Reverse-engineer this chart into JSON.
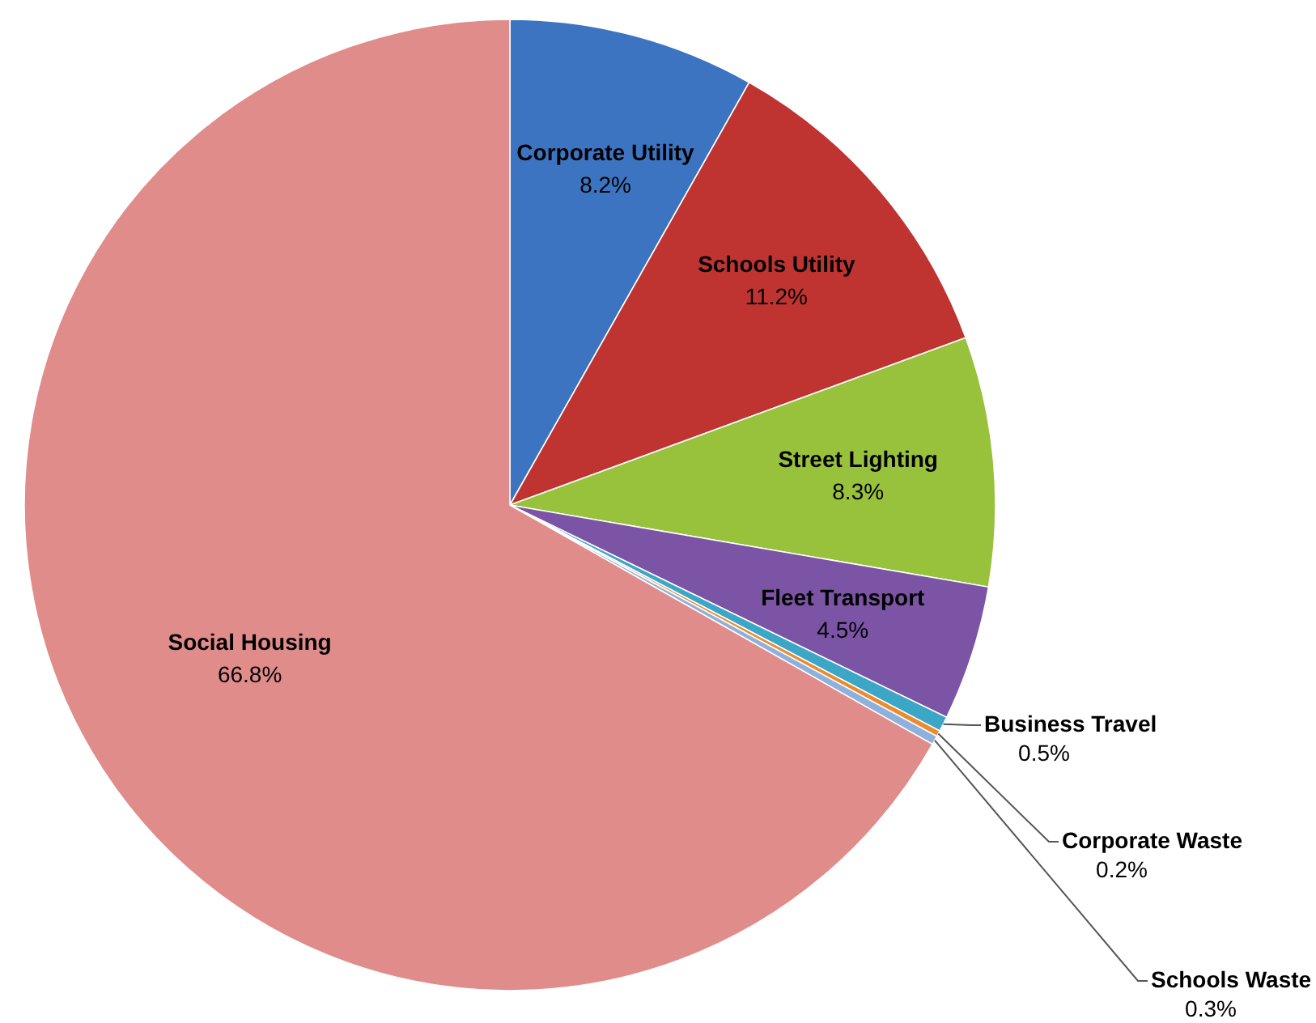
{
  "chart_data": {
    "type": "pie",
    "categories": [
      "Corporate Utility",
      "Schools Utility",
      "Street Lighting",
      "Fleet Transport",
      "Business Travel",
      "Corporate Waste",
      "Schools Waste",
      "Social Housing"
    ],
    "values": [
      8.2,
      11.2,
      8.3,
      4.5,
      0.5,
      0.2,
      0.3,
      66.8
    ],
    "value_labels": [
      "8.2%",
      "11.2%",
      "8.3%",
      "4.5%",
      "0.5%",
      "0.2%",
      "0.3%",
      "66.8%"
    ],
    "colors": [
      "#3c74c2",
      "#bf3431",
      "#98c13c",
      "#7b54a6",
      "#3ba6c6",
      "#ec8b2e",
      "#8fb0dc",
      "#e08c8a"
    ]
  }
}
